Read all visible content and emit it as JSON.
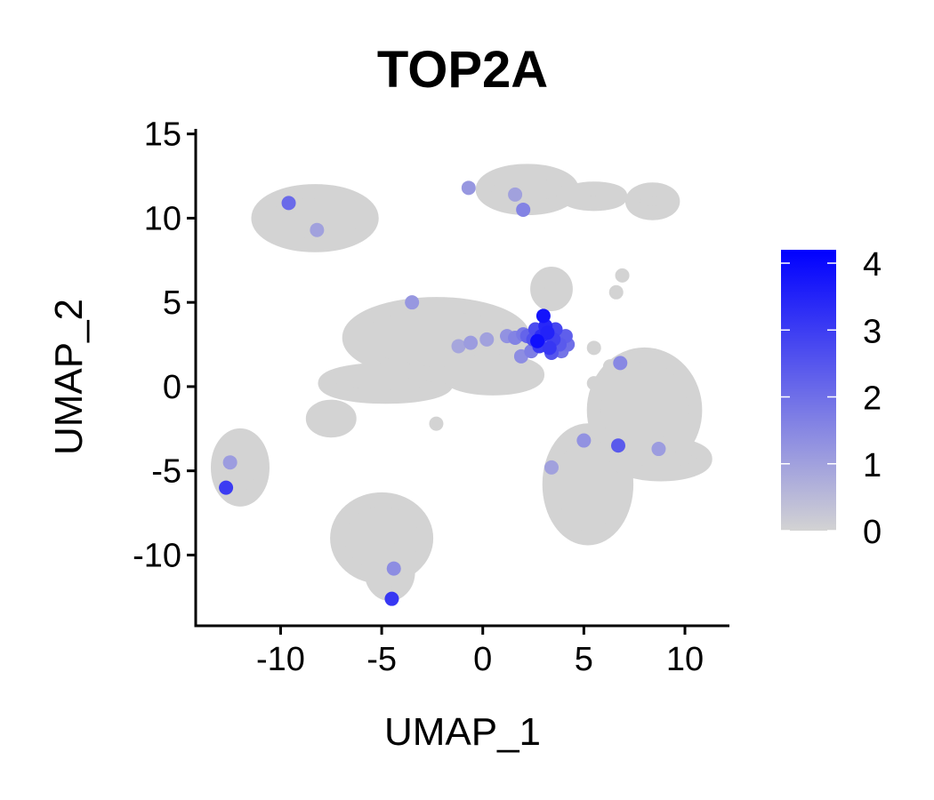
{
  "chart_data": {
    "type": "scatter",
    "title": "TOP2A",
    "xlabel": "UMAP_1",
    "ylabel": "UMAP_2",
    "xlim": [
      -14.2,
      12.2
    ],
    "ylim": [
      -14.2,
      15.3
    ],
    "x_ticks": [
      -10,
      -5,
      0,
      5,
      10
    ],
    "x_tick_labels": [
      "-10",
      "-5",
      "0",
      "5",
      "10"
    ],
    "y_ticks": [
      15,
      10,
      5,
      0,
      -5,
      -10
    ],
    "y_tick_labels": [
      "15",
      "10",
      "5",
      "0",
      "-5",
      "-10"
    ],
    "grid": false,
    "color_scale": {
      "low_color": "#d3d3d3",
      "high_color": "#0000ff",
      "range": [
        0,
        4.2
      ],
      "ticks": [
        0,
        1,
        2,
        3,
        4
      ],
      "tick_labels": [
        "0",
        "1",
        "2",
        "3",
        "4"
      ],
      "legend_position": "right"
    },
    "base_color": "#d3d3d3",
    "clusters": [
      {
        "shape": "ellipse",
        "cx": -8.3,
        "cy": 10.0,
        "rx": 2.8,
        "ry": 1.6
      },
      {
        "shape": "ellipse",
        "cx": 2.2,
        "cy": 11.7,
        "rx": 2.2,
        "ry": 1.1
      },
      {
        "shape": "ellipse",
        "cx": 5.5,
        "cy": 11.3,
        "rx": 1.3,
        "ry": 0.45
      },
      {
        "shape": "ellipse",
        "cx": 8.4,
        "cy": 11.0,
        "rx": 1.0,
        "ry": 0.7
      },
      {
        "shape": "ellipse",
        "cx": 3.4,
        "cy": 5.8,
        "rx": 0.7,
        "ry": 0.9
      },
      {
        "shape": "ellipse",
        "cx": -2.3,
        "cy": 2.9,
        "rx": 4.3,
        "ry": 2.0
      },
      {
        "shape": "ellipse",
        "cx": -4.8,
        "cy": 0.2,
        "rx": 3.0,
        "ry": 0.8
      },
      {
        "shape": "ellipse",
        "cx": 0.5,
        "cy": 0.7,
        "rx": 2.2,
        "ry": 0.8
      },
      {
        "shape": "ellipse",
        "cx": -7.5,
        "cy": -1.9,
        "rx": 0.9,
        "ry": 0.7
      },
      {
        "shape": "ellipse",
        "cx": -12.0,
        "cy": -4.8,
        "rx": 1.1,
        "ry": 1.9
      },
      {
        "shape": "ellipse",
        "cx": -5.0,
        "cy": -9.0,
        "rx": 2.2,
        "ry": 2.3
      },
      {
        "shape": "ellipse",
        "cx": -4.6,
        "cy": -11.0,
        "rx": 0.9,
        "ry": 1.3
      },
      {
        "shape": "ellipse",
        "cx": 8.0,
        "cy": -1.4,
        "rx": 2.5,
        "ry": 3.3
      },
      {
        "shape": "ellipse",
        "cx": 5.2,
        "cy": -5.8,
        "rx": 1.9,
        "ry": 3.2
      },
      {
        "shape": "ellipse",
        "cx": 8.8,
        "cy": -4.3,
        "rx": 2.2,
        "ry": 0.9
      }
    ],
    "strays": [
      {
        "x": -2.3,
        "y": -2.2
      },
      {
        "x": 6.6,
        "y": 5.6
      },
      {
        "x": 6.9,
        "y": 6.6
      },
      {
        "x": 5.5,
        "y": 0.2
      },
      {
        "x": 6.3,
        "y": 1.2
      },
      {
        "x": 5.5,
        "y": 2.3
      }
    ],
    "expressing": [
      {
        "x": 2.9,
        "y": 3.0,
        "v": 3.3
      },
      {
        "x": 3.2,
        "y": 3.2,
        "v": 3.5
      },
      {
        "x": 2.5,
        "y": 2.8,
        "v": 2.6
      },
      {
        "x": 3.5,
        "y": 2.8,
        "v": 2.9
      },
      {
        "x": 3.0,
        "y": 4.2,
        "v": 3.8
      },
      {
        "x": 3.8,
        "y": 2.5,
        "v": 2.4
      },
      {
        "x": 2.2,
        "y": 3.0,
        "v": 2.2
      },
      {
        "x": 3.3,
        "y": 2.3,
        "v": 3.1
      },
      {
        "x": 2.6,
        "y": 3.4,
        "v": 2.7
      },
      {
        "x": 4.2,
        "y": 2.5,
        "v": 2.0
      },
      {
        "x": 2.0,
        "y": 3.1,
        "v": 1.8
      },
      {
        "x": 1.6,
        "y": 2.9,
        "v": 1.6
      },
      {
        "x": 1.2,
        "y": 3.0,
        "v": 1.3
      },
      {
        "x": 3.6,
        "y": 3.4,
        "v": 2.8
      },
      {
        "x": 2.8,
        "y": 2.4,
        "v": 3.0
      },
      {
        "x": 3.1,
        "y": 3.6,
        "v": 3.4
      },
      {
        "x": 3.9,
        "y": 2.1,
        "v": 1.9
      },
      {
        "x": 2.4,
        "y": 2.1,
        "v": 1.7
      },
      {
        "x": 1.9,
        "y": 1.8,
        "v": 1.4
      },
      {
        "x": 3.4,
        "y": 2.0,
        "v": 2.5
      },
      {
        "x": 4.1,
        "y": 3.0,
        "v": 2.3
      },
      {
        "x": 2.7,
        "y": 2.7,
        "v": 3.9
      },
      {
        "x": -0.6,
        "y": 2.6,
        "v": 1.1
      },
      {
        "x": -1.2,
        "y": 2.4,
        "v": 0.9
      },
      {
        "x": 0.2,
        "y": 2.8,
        "v": 1.0
      },
      {
        "x": -3.5,
        "y": 5.0,
        "v": 1.2
      },
      {
        "x": -9.6,
        "y": 10.9,
        "v": 2.1
      },
      {
        "x": -8.2,
        "y": 9.3,
        "v": 1.0
      },
      {
        "x": -12.7,
        "y": -6.0,
        "v": 3.0
      },
      {
        "x": -12.5,
        "y": -4.5,
        "v": 1.1
      },
      {
        "x": -4.5,
        "y": -12.6,
        "v": 3.1
      },
      {
        "x": -4.4,
        "y": -10.8,
        "v": 1.4
      },
      {
        "x": 2.0,
        "y": 10.5,
        "v": 1.6
      },
      {
        "x": 1.6,
        "y": 11.4,
        "v": 1.0
      },
      {
        "x": -0.7,
        "y": 11.8,
        "v": 1.2
      },
      {
        "x": 6.8,
        "y": 1.4,
        "v": 1.5
      },
      {
        "x": 6.7,
        "y": -3.5,
        "v": 2.4
      },
      {
        "x": 5.0,
        "y": -3.2,
        "v": 1.3
      },
      {
        "x": 3.4,
        "y": -4.8,
        "v": 1.0
      },
      {
        "x": 8.7,
        "y": -3.7,
        "v": 1.1
      }
    ]
  }
}
